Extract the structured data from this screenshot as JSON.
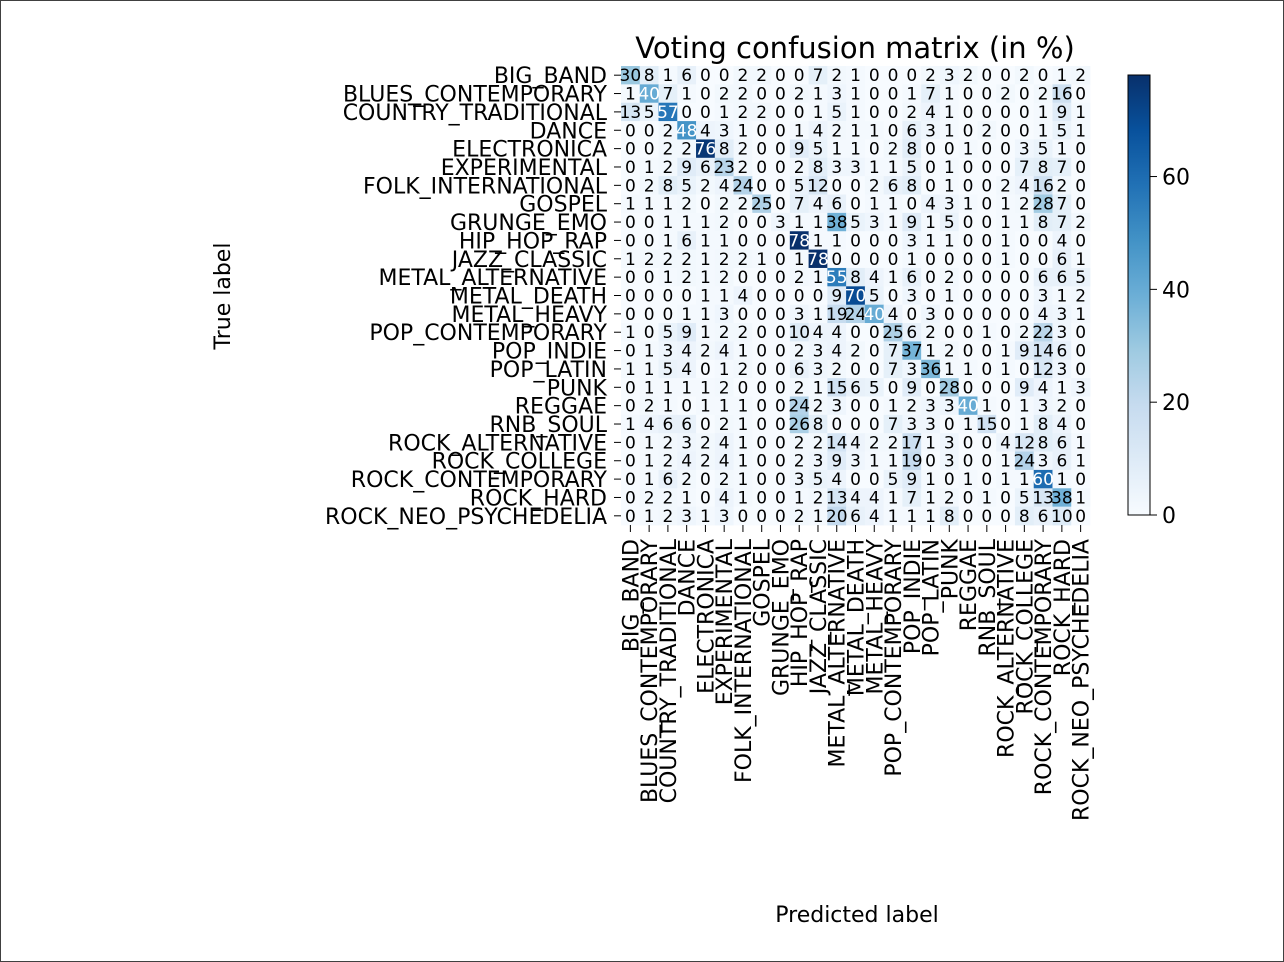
{
  "chart_data": {
    "type": "heatmap",
    "title": "Voting confusion matrix (in %)",
    "xlabel": "Predicted label",
    "ylabel": "True label",
    "labels": [
      "BIG_BAND",
      "BLUES_CONTEMPORARY",
      "COUNTRY_TRADITIONAL",
      "DANCE",
      "ELECTRONICA",
      "EXPERIMENTAL",
      "FOLK_INTERNATIONAL",
      "GOSPEL",
      "GRUNGE_EMO",
      "HIP_HOP_RAP",
      "JAZZ_CLASSIC",
      "METAL_ALTERNATIVE",
      "METAL_DEATH",
      "METAL_HEAVY",
      "POP_CONTEMPORARY",
      "POP_INDIE",
      "POP_LATIN",
      "PUNK",
      "REGGAE",
      "RNB_SOUL",
      "ROCK_ALTERNATIVE",
      "ROCK_COLLEGE",
      "ROCK_CONTEMPORARY",
      "ROCK_HARD",
      "ROCK_NEO_PSYCHEDELIA"
    ],
    "matrix": [
      [
        30,
        8,
        1,
        6,
        0,
        0,
        2,
        2,
        0,
        0,
        7,
        2,
        1,
        0,
        0,
        0,
        2,
        3,
        2,
        0,
        0,
        2,
        0,
        1,
        2
      ],
      [
        1,
        40,
        7,
        1,
        0,
        2,
        2,
        0,
        0,
        2,
        1,
        3,
        1,
        0,
        0,
        1,
        7,
        1,
        0,
        0,
        2,
        0,
        2,
        16,
        0
      ],
      [
        13,
        5,
        57,
        0,
        0,
        1,
        2,
        2,
        0,
        0,
        1,
        5,
        1,
        0,
        0,
        2,
        4,
        1,
        0,
        0,
        0,
        0,
        1,
        9,
        1
      ],
      [
        0,
        0,
        2,
        48,
        4,
        3,
        1,
        0,
        0,
        1,
        4,
        2,
        1,
        1,
        0,
        6,
        3,
        1,
        0,
        2,
        0,
        0,
        1,
        5,
        1
      ],
      [
        0,
        0,
        2,
        2,
        76,
        8,
        2,
        0,
        0,
        9,
        5,
        1,
        1,
        0,
        2,
        8,
        0,
        0,
        1,
        0,
        0,
        3,
        5,
        1,
        0
      ],
      [
        0,
        1,
        2,
        9,
        6,
        23,
        2,
        0,
        0,
        2,
        8,
        3,
        3,
        1,
        1,
        5,
        0,
        1,
        0,
        0,
        0,
        7,
        8,
        7,
        0
      ],
      [
        0,
        2,
        8,
        5,
        2,
        4,
        24,
        0,
        0,
        5,
        12,
        0,
        0,
        2,
        6,
        8,
        0,
        1,
        0,
        0,
        2,
        4,
        16,
        2,
        0
      ],
      [
        1,
        1,
        1,
        2,
        0,
        2,
        2,
        25,
        0,
        7,
        4,
        6,
        0,
        1,
        1,
        0,
        4,
        3,
        1,
        0,
        1,
        2,
        28,
        7,
        0
      ],
      [
        0,
        0,
        1,
        1,
        1,
        2,
        0,
        0,
        3,
        1,
        1,
        38,
        5,
        3,
        1,
        9,
        1,
        5,
        0,
        0,
        1,
        1,
        8,
        7,
        2
      ],
      [
        0,
        0,
        1,
        6,
        1,
        1,
        0,
        0,
        0,
        78,
        1,
        1,
        0,
        0,
        0,
        3,
        1,
        1,
        0,
        0,
        1,
        0,
        0,
        4,
        0
      ],
      [
        1,
        2,
        2,
        2,
        1,
        2,
        2,
        1,
        0,
        1,
        78,
        0,
        0,
        0,
        0,
        1,
        0,
        0,
        0,
        0,
        1,
        0,
        0,
        6,
        1
      ],
      [
        0,
        0,
        1,
        2,
        1,
        2,
        0,
        0,
        0,
        2,
        1,
        55,
        8,
        4,
        1,
        6,
        0,
        2,
        0,
        0,
        0,
        0,
        6,
        6,
        5
      ],
      [
        0,
        0,
        0,
        0,
        1,
        1,
        4,
        0,
        0,
        0,
        0,
        9,
        70,
        5,
        0,
        3,
        0,
        1,
        0,
        0,
        0,
        0,
        3,
        1,
        2
      ],
      [
        0,
        0,
        0,
        1,
        1,
        3,
        0,
        0,
        0,
        3,
        1,
        19,
        24,
        40,
        4,
        0,
        3,
        0,
        0,
        0,
        0,
        0,
        4,
        3,
        1
      ],
      [
        1,
        0,
        5,
        9,
        1,
        2,
        2,
        0,
        0,
        10,
        4,
        4,
        0,
        0,
        25,
        6,
        2,
        0,
        0,
        1,
        0,
        2,
        22,
        3,
        0
      ],
      [
        0,
        1,
        3,
        4,
        2,
        4,
        1,
        0,
        0,
        2,
        3,
        4,
        2,
        0,
        7,
        37,
        1,
        2,
        0,
        0,
        1,
        9,
        14,
        6,
        0
      ],
      [
        1,
        1,
        5,
        4,
        0,
        1,
        2,
        0,
        0,
        6,
        3,
        2,
        0,
        0,
        7,
        3,
        36,
        1,
        1,
        0,
        1,
        0,
        12,
        3,
        0
      ],
      [
        0,
        1,
        1,
        1,
        1,
        2,
        0,
        0,
        0,
        2,
        1,
        15,
        6,
        5,
        0,
        9,
        0,
        28,
        0,
        0,
        0,
        9,
        4,
        1,
        3
      ],
      [
        0,
        2,
        1,
        0,
        1,
        1,
        1,
        0,
        0,
        24,
        2,
        3,
        0,
        0,
        1,
        2,
        3,
        3,
        40,
        1,
        0,
        1,
        3,
        2,
        0
      ],
      [
        1,
        4,
        6,
        6,
        0,
        2,
        1,
        0,
        0,
        26,
        8,
        0,
        0,
        0,
        7,
        3,
        3,
        0,
        1,
        15,
        0,
        1,
        8,
        4,
        0
      ],
      [
        0,
        1,
        2,
        3,
        2,
        4,
        1,
        0,
        0,
        2,
        2,
        14,
        4,
        2,
        2,
        17,
        1,
        3,
        0,
        0,
        4,
        12,
        8,
        6,
        1
      ],
      [
        0,
        1,
        2,
        4,
        2,
        4,
        1,
        0,
        0,
        2,
        3,
        9,
        3,
        1,
        1,
        19,
        0,
        3,
        0,
        0,
        1,
        24,
        3,
        6,
        1
      ],
      [
        0,
        1,
        6,
        2,
        0,
        2,
        1,
        0,
        0,
        3,
        5,
        4,
        0,
        0,
        5,
        9,
        1,
        0,
        1,
        0,
        1,
        1,
        60,
        1,
        0
      ],
      [
        0,
        2,
        2,
        1,
        0,
        4,
        1,
        0,
        0,
        1,
        2,
        13,
        4,
        4,
        1,
        7,
        1,
        2,
        0,
        1,
        0,
        5,
        13,
        38,
        1
      ],
      [
        0,
        1,
        2,
        3,
        1,
        3,
        0,
        0,
        0,
        2,
        1,
        20,
        6,
        4,
        1,
        1,
        1,
        8,
        0,
        0,
        0,
        8,
        6,
        10,
        0
      ]
    ],
    "colormap": "Blues",
    "color_range": [
      0,
      78
    ],
    "colorbar_ticks": [
      0,
      20,
      40,
      60
    ]
  }
}
